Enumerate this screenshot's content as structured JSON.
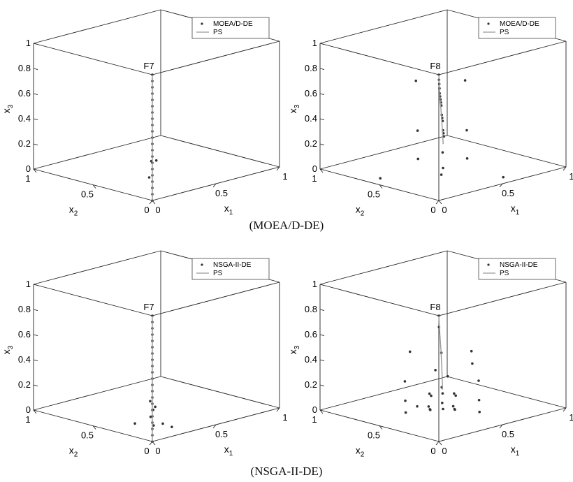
{
  "chart_data": [
    {
      "type": "scatter",
      "subplot": "top-left",
      "title": "F7",
      "axes": {
        "x1": "x1",
        "x2": "x2",
        "x3": "x3"
      },
      "ticks": {
        "x1": [
          "0",
          "0.5",
          "1"
        ],
        "x2": [
          "0",
          "0.5",
          "1"
        ],
        "x3": [
          "0",
          "0.2",
          "0.4",
          "0.6",
          "0.8",
          "1"
        ]
      },
      "xlim": [
        0,
        1
      ],
      "ylim": [
        0,
        1
      ],
      "zlim": [
        0,
        1
      ],
      "legend": {
        "position": "top-right",
        "entries": [
          "MOEA/D-DE",
          "PS"
        ]
      },
      "series": [
        {
          "name": "MOEA/D-DE",
          "style": "dots",
          "points": [
            [
              0.0,
              0.0,
              1.0
            ],
            [
              0.0,
              0.0,
              0.95
            ],
            [
              0.0,
              0.0,
              0.9
            ],
            [
              0.0,
              0.0,
              0.85
            ],
            [
              0.0,
              0.0,
              0.8
            ],
            [
              0.0,
              0.0,
              0.75
            ],
            [
              0.0,
              0.0,
              0.7
            ],
            [
              0.0,
              0.0,
              0.65
            ],
            [
              0.0,
              0.0,
              0.6
            ],
            [
              0.0,
              0.0,
              0.55
            ],
            [
              0.0,
              0.0,
              0.5
            ],
            [
              0.0,
              0.0,
              0.45
            ],
            [
              0.0,
              0.0,
              0.4
            ],
            [
              0.0,
              0.0,
              0.35
            ],
            [
              0.0,
              0.0,
              0.3
            ],
            [
              0.0,
              0.0,
              0.25
            ],
            [
              0.0,
              0.0,
              0.2
            ],
            [
              0.0,
              0.0,
              0.15
            ],
            [
              0.0,
              0.0,
              0.1
            ],
            [
              0.0,
              0.0,
              0.05
            ],
            [
              0.0,
              0.0,
              0.0
            ],
            [
              0.02,
              0.03,
              0.3
            ],
            [
              0.05,
              0.02,
              0.3
            ],
            [
              0.05,
              0.08,
              0.15
            ]
          ]
        },
        {
          "name": "PS",
          "style": "line",
          "points": [
            [
              0.0,
              0.0,
              1.0
            ],
            [
              0.0,
              0.0,
              0.0
            ]
          ]
        }
      ]
    },
    {
      "type": "scatter",
      "subplot": "top-right",
      "title": "F8",
      "axes": {
        "x1": "x1",
        "x2": "x2",
        "x3": "x3"
      },
      "ticks": {
        "x1": [
          "0",
          "0.5",
          "1"
        ],
        "x2": [
          "0",
          "0.5",
          "1"
        ],
        "x3": [
          "0",
          "0.2",
          "0.4",
          "0.6",
          "0.8",
          "1"
        ]
      },
      "xlim": [
        0,
        1
      ],
      "ylim": [
        0,
        1
      ],
      "zlim": [
        0,
        1
      ],
      "legend": {
        "position": "top-right",
        "entries": [
          "MOEA/D-DE",
          "PS"
        ]
      },
      "series": [
        {
          "name": "MOEA/D-DE",
          "style": "dots",
          "points": [
            [
              0.0,
              0.0,
              1.0
            ],
            [
              0.02,
              0.02,
              0.95
            ],
            [
              0.05,
              0.05,
              0.9
            ],
            [
              0.08,
              0.08,
              0.85
            ],
            [
              0.1,
              0.1,
              0.8
            ],
            [
              0.15,
              0.15,
              0.75
            ],
            [
              0.2,
              0.2,
              0.7
            ],
            [
              0.25,
              0.25,
              0.65
            ],
            [
              0.3,
              0.3,
              0.6
            ],
            [
              0.35,
              0.35,
              0.5
            ],
            [
              0.4,
              0.4,
              0.45
            ],
            [
              0.45,
              0.45,
              0.4
            ],
            [
              0.5,
              0.5,
              0.3
            ],
            [
              0.55,
              0.55,
              0.25
            ],
            [
              0.6,
              0.6,
              0.2
            ],
            [
              0.3,
              0.5,
              0.35
            ],
            [
              0.5,
              0.3,
              0.35
            ],
            [
              0.45,
              0.45,
              0.15
            ],
            [
              0.35,
              0.55,
              0.1
            ],
            [
              0.55,
              0.35,
              0.1
            ],
            [
              0.5,
              0.5,
              0.0
            ],
            [
              0.1,
              0.6,
              0.0
            ],
            [
              0.6,
              0.1,
              0.0
            ],
            [
              0.3,
              0.3,
              0.05
            ],
            [
              0.1,
              0.3,
              0.85
            ],
            [
              0.3,
              0.1,
              0.85
            ]
          ]
        },
        {
          "name": "PS",
          "style": "line",
          "points": [
            [
              0.0,
              0.0,
              1.0
            ],
            [
              0.05,
              0.05,
              0.88
            ],
            [
              0.15,
              0.15,
              0.72
            ],
            [
              0.25,
              0.25,
              0.6
            ],
            [
              0.35,
              0.35,
              0.45
            ],
            [
              0.45,
              0.45,
              0.3
            ],
            [
              0.52,
              0.52,
              0.18
            ]
          ]
        }
      ]
    },
    {
      "type": "scatter",
      "subplot": "bottom-left",
      "title": "F7",
      "axes": {
        "x1": "x1",
        "x2": "x2",
        "x3": "x3"
      },
      "ticks": {
        "x1": [
          "0",
          "0.5",
          "1"
        ],
        "x2": [
          "0",
          "0.5",
          "1"
        ],
        "x3": [
          "0",
          "0.2",
          "0.4",
          "0.6",
          "0.8",
          "1"
        ]
      },
      "xlim": [
        0,
        1
      ],
      "ylim": [
        0,
        1
      ],
      "zlim": [
        0,
        1
      ],
      "legend": {
        "position": "top-right",
        "entries": [
          "NSGA-II-DE",
          "PS"
        ]
      },
      "series": [
        {
          "name": "NSGA-II-DE",
          "style": "dots",
          "points": [
            [
              0.0,
              0.0,
              1.0
            ],
            [
              0.0,
              0.0,
              0.95
            ],
            [
              0.0,
              0.0,
              0.9
            ],
            [
              0.0,
              0.0,
              0.85
            ],
            [
              0.0,
              0.0,
              0.8
            ],
            [
              0.0,
              0.0,
              0.75
            ],
            [
              0.0,
              0.0,
              0.7
            ],
            [
              0.0,
              0.0,
              0.65
            ],
            [
              0.0,
              0.0,
              0.6
            ],
            [
              0.0,
              0.0,
              0.55
            ],
            [
              0.0,
              0.0,
              0.5
            ],
            [
              0.0,
              0.0,
              0.45
            ],
            [
              0.0,
              0.0,
              0.4
            ],
            [
              0.0,
              0.0,
              0.35
            ],
            [
              0.0,
              0.0,
              0.3
            ],
            [
              0.0,
              0.0,
              0.25
            ],
            [
              0.0,
              0.0,
              0.2
            ],
            [
              0.0,
              0.0,
              0.15
            ],
            [
              0.0,
              0.0,
              0.1
            ],
            [
              0.0,
              0.0,
              0.05
            ],
            [
              0.0,
              0.0,
              0.0
            ],
            [
              0.03,
              0.05,
              0.3
            ],
            [
              0.06,
              0.04,
              0.25
            ],
            [
              0.08,
              0.1,
              0.15
            ],
            [
              0.12,
              0.04,
              0.1
            ],
            [
              0.15,
              0.15,
              0.05
            ],
            [
              0.2,
              0.05,
              0.05
            ],
            [
              0.05,
              0.2,
              0.08
            ],
            [
              0.1,
              0.1,
              0.2
            ]
          ]
        },
        {
          "name": "PS",
          "style": "line",
          "points": [
            [
              0.0,
              0.0,
              1.0
            ],
            [
              0.0,
              0.0,
              0.0
            ]
          ]
        }
      ]
    },
    {
      "type": "scatter",
      "subplot": "bottom-right",
      "title": "F8",
      "axes": {
        "x1": "x1",
        "x2": "x2",
        "x3": "x3"
      },
      "ticks": {
        "x1": [
          "0",
          "0.5",
          "1"
        ],
        "x2": [
          "0",
          "0.5",
          "1"
        ],
        "x3": [
          "0",
          "0.2",
          "0.4",
          "0.6",
          "0.8",
          "1"
        ]
      },
      "xlim": [
        0,
        1
      ],
      "ylim": [
        0,
        1
      ],
      "zlim": [
        0,
        1
      ],
      "legend": {
        "position": "top-right",
        "entries": [
          "NSGA-II-DE",
          "PS"
        ]
      },
      "series": [
        {
          "name": "NSGA-II-DE",
          "style": "dots",
          "points": [
            [
              0.0,
              0.0,
              1.0
            ],
            [
              0.02,
              0.02,
              0.9
            ],
            [
              0.35,
              0.1,
              0.6
            ],
            [
              0.1,
              0.35,
              0.6
            ],
            [
              0.3,
              0.3,
              0.55
            ],
            [
              0.2,
              0.5,
              0.3
            ],
            [
              0.5,
              0.2,
              0.3
            ],
            [
              0.35,
              0.35,
              0.25
            ],
            [
              0.3,
              0.4,
              0.2
            ],
            [
              0.4,
              0.3,
              0.2
            ],
            [
              0.45,
              0.45,
              0.15
            ],
            [
              0.25,
              0.55,
              0.12
            ],
            [
              0.55,
              0.25,
              0.12
            ],
            [
              0.4,
              0.4,
              0.1
            ],
            [
              0.35,
              0.45,
              0.05
            ],
            [
              0.45,
              0.35,
              0.05
            ],
            [
              0.5,
              0.5,
              0.0
            ],
            [
              0.3,
              0.6,
              0.0
            ],
            [
              0.6,
              0.3,
              0.0
            ],
            [
              0.4,
              0.5,
              0.02
            ],
            [
              0.5,
              0.4,
              0.02
            ],
            [
              0.2,
              0.3,
              0.15
            ],
            [
              0.3,
              0.2,
              0.15
            ],
            [
              0.6,
              0.5,
              0.08
            ],
            [
              0.5,
              0.6,
              0.08
            ],
            [
              0.35,
              0.3,
              0.35
            ],
            [
              0.3,
              0.35,
              0.4
            ],
            [
              0.45,
              0.2,
              0.45
            ],
            [
              0.25,
              0.45,
              0.1
            ]
          ]
        },
        {
          "name": "PS",
          "style": "line",
          "points": [
            [
              0.0,
              0.0,
              1.0
            ],
            [
              0.05,
              0.05,
              0.9
            ],
            [
              0.15,
              0.15,
              0.75
            ],
            [
              0.25,
              0.25,
              0.6
            ],
            [
              0.33,
              0.33,
              0.45
            ],
            [
              0.4,
              0.4,
              0.3
            ],
            [
              0.45,
              0.45,
              0.18
            ]
          ]
        }
      ]
    }
  ],
  "captions": {
    "top": "(MOEA/D-DE)",
    "bottom": "(NSGA-II-DE)"
  },
  "colors": {
    "axis": "#222222",
    "marker": "#333333",
    "ps_line": "#999999"
  }
}
